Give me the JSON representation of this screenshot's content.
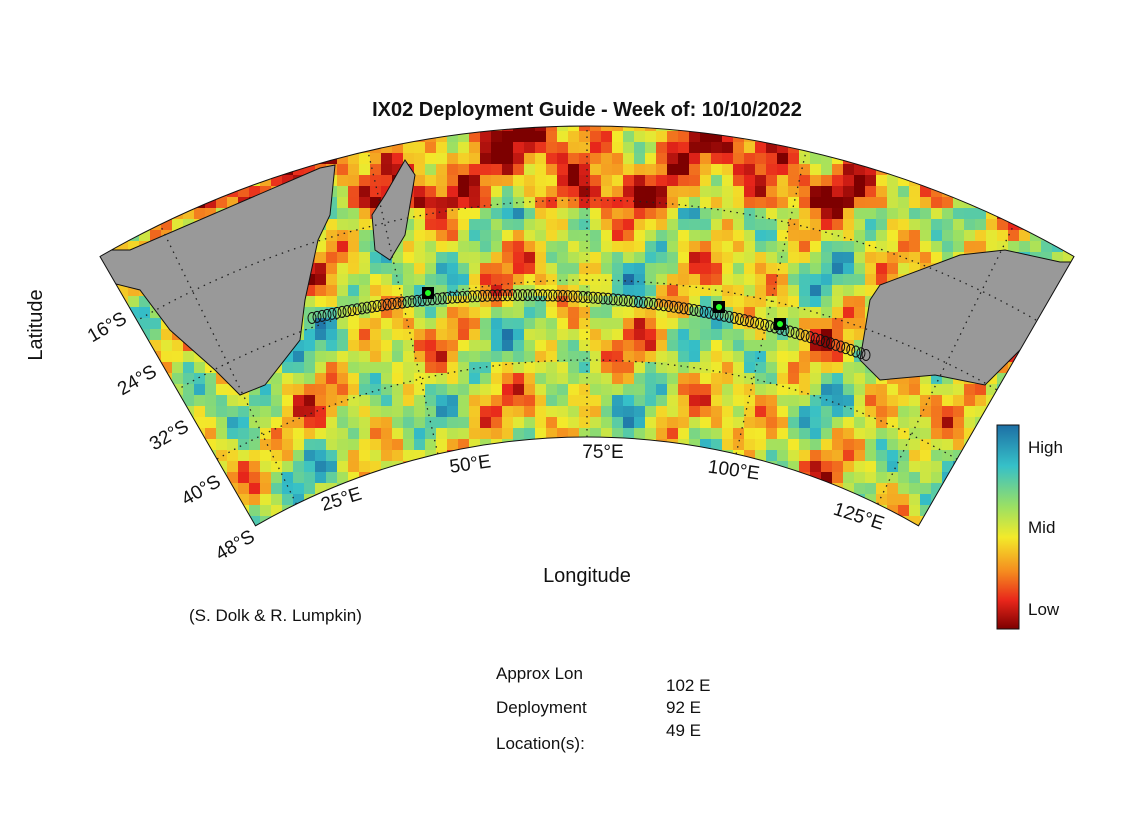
{
  "title": "IX02 Deployment Guide - Week of: 10/10/2022",
  "axes": {
    "y_label": "Latitude",
    "x_label": "Longitude"
  },
  "lat_labels": [
    "16°S",
    "24°S",
    "32°S",
    "40°S",
    "48°S"
  ],
  "lon_labels": [
    "25°E",
    "50°E",
    "75°E",
    "100°E",
    "125°E"
  ],
  "colorbar": {
    "labels": [
      "High",
      "Mid",
      "Low"
    ]
  },
  "credit": "(S. Dolk & R. Lumpkin)",
  "deployment": {
    "label_lines": [
      "Approx Lon",
      "Deployment",
      "Location(s):"
    ],
    "locations": [
      "102 E",
      "92 E",
      "49 E"
    ]
  }
}
